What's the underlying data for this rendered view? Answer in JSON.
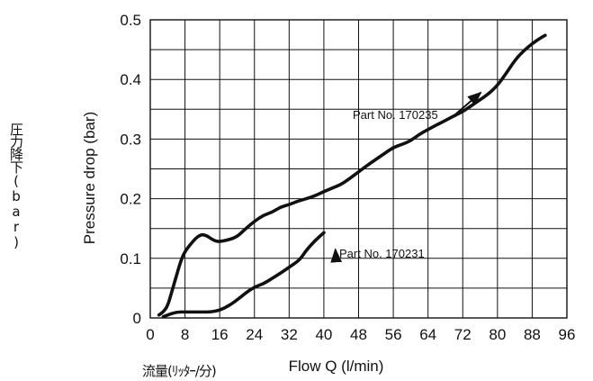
{
  "chart_data": {
    "type": "line",
    "title": "",
    "xlabel": "Flow Q (l/min)",
    "ylabel": "Pressure drop (bar)",
    "xlabel_ja": "流量(ﾘｯﾀｰ/分)",
    "ylabel_ja": "圧力降下(bar)",
    "xlim": [
      0,
      96
    ],
    "ylim": [
      0,
      0.5
    ],
    "x_ticks": [
      0,
      8,
      16,
      24,
      32,
      40,
      48,
      56,
      64,
      72,
      80,
      88,
      96
    ],
    "y_ticks": [
      0,
      0.1,
      0.2,
      0.3,
      0.4,
      0.5
    ],
    "x_tick_labels": [
      "0",
      "8",
      "16",
      "24",
      "32",
      "40",
      "48",
      "56",
      "64",
      "72",
      "80",
      "88",
      "96"
    ],
    "y_tick_labels": [
      "0",
      "0.1",
      "0.2",
      "0.3",
      "0.4",
      "0.5"
    ],
    "grid": true,
    "legend": "none",
    "colors": {
      "line": "#111111",
      "grid": "#111111",
      "background": "#ffffff"
    },
    "series": [
      {
        "name": "Part No. 170235",
        "x": [
          2,
          3,
          4,
          5,
          6,
          7,
          8,
          10,
          11,
          12,
          13,
          14,
          15,
          16,
          18,
          20,
          22,
          24,
          26,
          28,
          30,
          32,
          34,
          36,
          38,
          40,
          42,
          44,
          46,
          48,
          50,
          52,
          54,
          56,
          58,
          60,
          62,
          64,
          66,
          68,
          70,
          72,
          74,
          76,
          78,
          80,
          82,
          84,
          86,
          88,
          90,
          91
        ],
        "y": [
          0.005,
          0.01,
          0.02,
          0.045,
          0.07,
          0.095,
          0.112,
          0.13,
          0.137,
          0.14,
          0.138,
          0.133,
          0.129,
          0.128,
          0.131,
          0.136,
          0.15,
          0.162,
          0.172,
          0.177,
          0.186,
          0.19,
          0.196,
          0.2,
          0.205,
          0.212,
          0.218,
          0.224,
          0.234,
          0.245,
          0.256,
          0.266,
          0.276,
          0.286,
          0.291,
          0.297,
          0.308,
          0.316,
          0.324,
          0.331,
          0.339,
          0.346,
          0.356,
          0.366,
          0.376,
          0.39,
          0.41,
          0.432,
          0.448,
          0.46,
          0.47,
          0.474
        ]
      },
      {
        "name": "Part No. 170231",
        "x": [
          3,
          4,
          6,
          8,
          10,
          12,
          14,
          16,
          18,
          20,
          22,
          24,
          26,
          28,
          30,
          32,
          34,
          35,
          36,
          38,
          40
        ],
        "y": [
          0.002,
          0.005,
          0.01,
          0.01,
          0.01,
          0.01,
          0.01,
          0.013,
          0.02,
          0.03,
          0.042,
          0.052,
          0.057,
          0.066,
          0.075,
          0.085,
          0.095,
          0.103,
          0.114,
          0.13,
          0.143
        ]
      }
    ],
    "annotations": [
      {
        "text": "Part No. 170235",
        "series": 0,
        "arrow_to": [
          77,
          0.378
        ]
      },
      {
        "text": "Part No. 170231",
        "series": 1,
        "arrow_to": [
          41,
          0.115
        ]
      }
    ]
  }
}
